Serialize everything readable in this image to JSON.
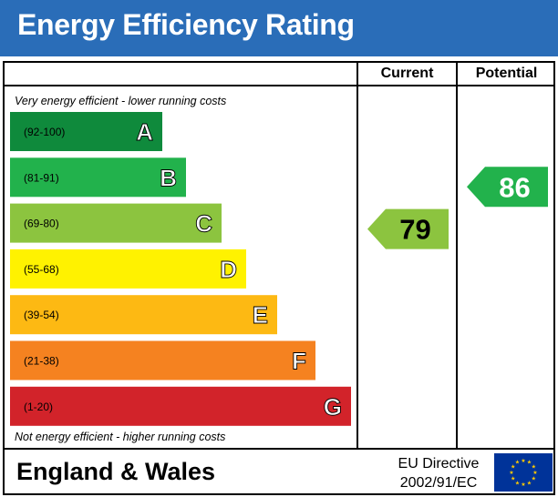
{
  "header": {
    "title": "Energy Efficiency Rating"
  },
  "columns": {
    "current": "Current",
    "potential": "Potential"
  },
  "notes": {
    "top": "Very energy efficient - lower running costs",
    "bottom": "Not energy efficient - higher running costs"
  },
  "footer": {
    "region": "England & Wales",
    "directive_line1": "EU Directive",
    "directive_line2": "2002/91/EC"
  },
  "chart_data": {
    "type": "bar",
    "categories": [
      "A",
      "B",
      "C",
      "D",
      "E",
      "F",
      "G"
    ],
    "bands": [
      {
        "letter": "A",
        "range": "(92-100)",
        "color": "#0f8a3c"
      },
      {
        "letter": "B",
        "range": "(81-91)",
        "color": "#22b24c"
      },
      {
        "letter": "C",
        "range": "(69-80)",
        "color": "#8cc43f"
      },
      {
        "letter": "D",
        "range": "(55-68)",
        "color": "#fff200"
      },
      {
        "letter": "E",
        "range": "(39-54)",
        "color": "#fdb913"
      },
      {
        "letter": "F",
        "range": "(21-38)",
        "color": "#f58220"
      },
      {
        "letter": "G",
        "range": "(1-20)",
        "color": "#d2232a"
      }
    ],
    "current": {
      "value": 79,
      "band": "C",
      "color": "#8cc43f"
    },
    "potential": {
      "value": 86,
      "band": "B",
      "color": "#22b24c"
    }
  },
  "eu_flag_colors": {
    "field": "#003399",
    "stars": "#ffcc00"
  }
}
